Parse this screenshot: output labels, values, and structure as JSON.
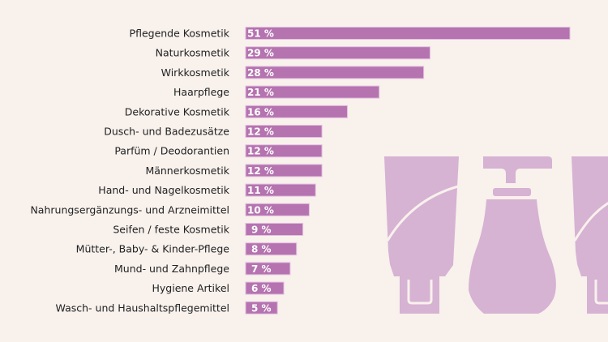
{
  "colors": {
    "background": "#f8f1ec",
    "bar": "#b573b0",
    "bar_edge": "#e3bfe0",
    "decoration": "#d6b2d3",
    "label_text": "#222222",
    "value_text": "#ffffff"
  },
  "decoration": {
    "icons": [
      "cosmetic-tube-icon",
      "pump-bottle-icon",
      "cosmetic-tube-icon"
    ]
  },
  "chart_data": {
    "type": "bar",
    "orientation": "horizontal",
    "title": "",
    "xlabel": "",
    "ylabel": "",
    "xlim": [
      0,
      51
    ],
    "grid": false,
    "legend": "none",
    "unit": "%",
    "categories": [
      "Pflegende Kosmetik",
      "Naturkosmetik",
      "Wirkkosmetik",
      "Haarpflege",
      "Dekorative Kosmetik",
      "Dusch- und Badezusätze",
      "Parfüm / Deodorantien",
      "Männerkosmetik",
      "Hand- und Nagelkosmetik",
      "Nahrungsergänzungs- und Arzneimittel",
      "Seifen / feste Kosmetik",
      "Mütter-, Baby- & Kinder-Pflege",
      "Mund- und Zahnpflege",
      "Hygiene Artikel",
      "Wasch- und Haushaltspflegemittel"
    ],
    "values": [
      51,
      29,
      28,
      21,
      16,
      12,
      12,
      12,
      11,
      10,
      9,
      8,
      7,
      6,
      5
    ],
    "value_labels": [
      "51 %",
      "29 %",
      "28 %",
      "21 %",
      "16 %",
      "12 %",
      "12 %",
      "12 %",
      "11 %",
      "10 %",
      "9 %",
      "8 %",
      "7 %",
      "6 %",
      "5 %"
    ]
  }
}
